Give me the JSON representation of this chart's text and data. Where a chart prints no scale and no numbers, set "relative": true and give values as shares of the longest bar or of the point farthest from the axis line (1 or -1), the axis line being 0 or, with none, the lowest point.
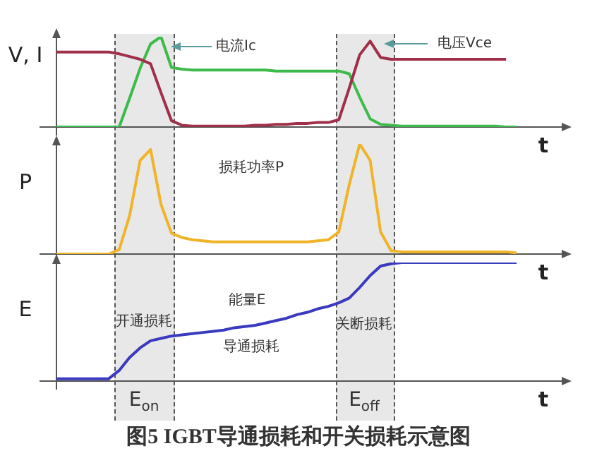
{
  "chart_data": [
    {
      "type": "line",
      "ylabel": "V, I",
      "xlabel": "t",
      "relative": true,
      "marker": "none",
      "line_style": "solid",
      "annotations": [
        "电流Ic",
        "电压Vce"
      ],
      "categories": [
        null,
        null,
        null,
        null,
        null,
        null,
        null,
        null,
        null,
        null,
        null,
        null,
        null,
        null,
        null,
        null,
        null,
        null,
        null,
        null,
        null,
        null,
        null,
        null,
        null,
        null,
        null,
        null,
        null,
        null,
        null,
        null,
        null,
        null,
        null,
        null,
        null,
        null,
        null,
        null,
        null,
        null,
        null,
        null,
        null
      ],
      "series": [
        {
          "color": "#a0304a",
          "values": [
            0.83,
            0.83,
            0.83,
            0.83,
            0.83,
            0.83,
            0.81,
            0.78,
            0.75,
            0.7,
            0.38,
            0.07,
            0.02,
            0.01,
            0.01,
            0.01,
            0.01,
            0.01,
            0.01,
            0.02,
            0.02,
            0.03,
            0.03,
            0.04,
            0.04,
            0.05,
            0.05,
            0.08,
            0.43,
            0.8,
            0.95,
            0.77,
            0.75,
            0.75,
            0.75,
            0.75,
            0.75,
            0.75,
            0.75,
            0.75,
            0.75,
            0.75,
            0.75,
            0.75,
            null
          ]
        },
        {
          "color": "#3dbb4a",
          "values": [
            0,
            0,
            0,
            0,
            0,
            0,
            0,
            0.32,
            0.65,
            0.92,
            1.0,
            0.66,
            0.64,
            0.63,
            0.63,
            0.63,
            0.63,
            0.63,
            0.63,
            0.63,
            0.63,
            0.62,
            0.62,
            0.62,
            0.62,
            0.62,
            0.62,
            0.62,
            0.59,
            0.33,
            0.09,
            0.03,
            0.02,
            0.01,
            0.01,
            0.01,
            0.01,
            0.01,
            0.01,
            0.01,
            0.01,
            0.01,
            0.01,
            0,
            0
          ]
        }
      ]
    },
    {
      "type": "line",
      "ylabel": "P",
      "xlabel": "t",
      "relative": true,
      "marker": "none",
      "line_style": "solid",
      "annotations": [
        "损耗功率P"
      ],
      "categories": [
        null,
        null,
        null,
        null,
        null,
        null,
        null,
        null,
        null,
        null,
        null,
        null,
        null,
        null,
        null,
        null,
        null,
        null,
        null,
        null,
        null,
        null,
        null,
        null,
        null,
        null,
        null,
        null,
        null,
        null,
        null,
        null,
        null,
        null,
        null,
        null,
        null,
        null,
        null,
        null,
        null,
        null,
        null,
        null,
        null
      ],
      "series": [
        {
          "color": "#f0b429",
          "values": [
            0,
            0,
            0,
            0,
            0,
            0,
            0.04,
            0.35,
            0.85,
            0.95,
            0.45,
            0.19,
            0.15,
            0.13,
            0.12,
            0.11,
            0.11,
            0.11,
            0.11,
            0.11,
            0.11,
            0.11,
            0.11,
            0.11,
            0.11,
            0.12,
            0.13,
            0.2,
            0.63,
            1.0,
            0.85,
            0.2,
            0.03,
            0.02,
            0.02,
            0.02,
            0.02,
            0.02,
            0.02,
            0.02,
            0.02,
            0.02,
            0.02,
            0.02,
            0.01
          ]
        }
      ]
    },
    {
      "type": "line",
      "ylabel": "E",
      "xlabel": "t",
      "relative": true,
      "marker": "none",
      "line_style": "solid",
      "title": "图5 IGBT导通损耗和开关损耗示意图",
      "annotations": [
        "能量E",
        "开通损耗",
        "导通损耗",
        "关断损耗",
        "E$_{on}$",
        "E$_{off}$"
      ],
      "categories": [
        null,
        null,
        null,
        null,
        null,
        null,
        null,
        null,
        null,
        null,
        null,
        null,
        null,
        null,
        null,
        null,
        null,
        null,
        null,
        null,
        null,
        null,
        null,
        null,
        null,
        null,
        null,
        null,
        null,
        null,
        null,
        null,
        null,
        null,
        null,
        null,
        null,
        null,
        null,
        null,
        null,
        null,
        null,
        null,
        null
      ],
      "series": [
        {
          "color": "#3a3ac0",
          "values": [
            0.02,
            0.02,
            0.02,
            0.02,
            0.02,
            0.02,
            0.09,
            0.2,
            0.28,
            0.34,
            0.36,
            0.38,
            0.39,
            0.4,
            0.41,
            0.42,
            0.43,
            0.45,
            0.46,
            0.47,
            0.49,
            0.51,
            0.53,
            0.56,
            0.58,
            0.61,
            0.63,
            0.66,
            0.7,
            0.79,
            0.89,
            0.97,
            0.99,
            1.0,
            1.0,
            1.0,
            1.0,
            1.0,
            1.0,
            1.0,
            1.0,
            1.0,
            1.0,
            1.0,
            1.0
          ]
        }
      ]
    }
  ]
}
